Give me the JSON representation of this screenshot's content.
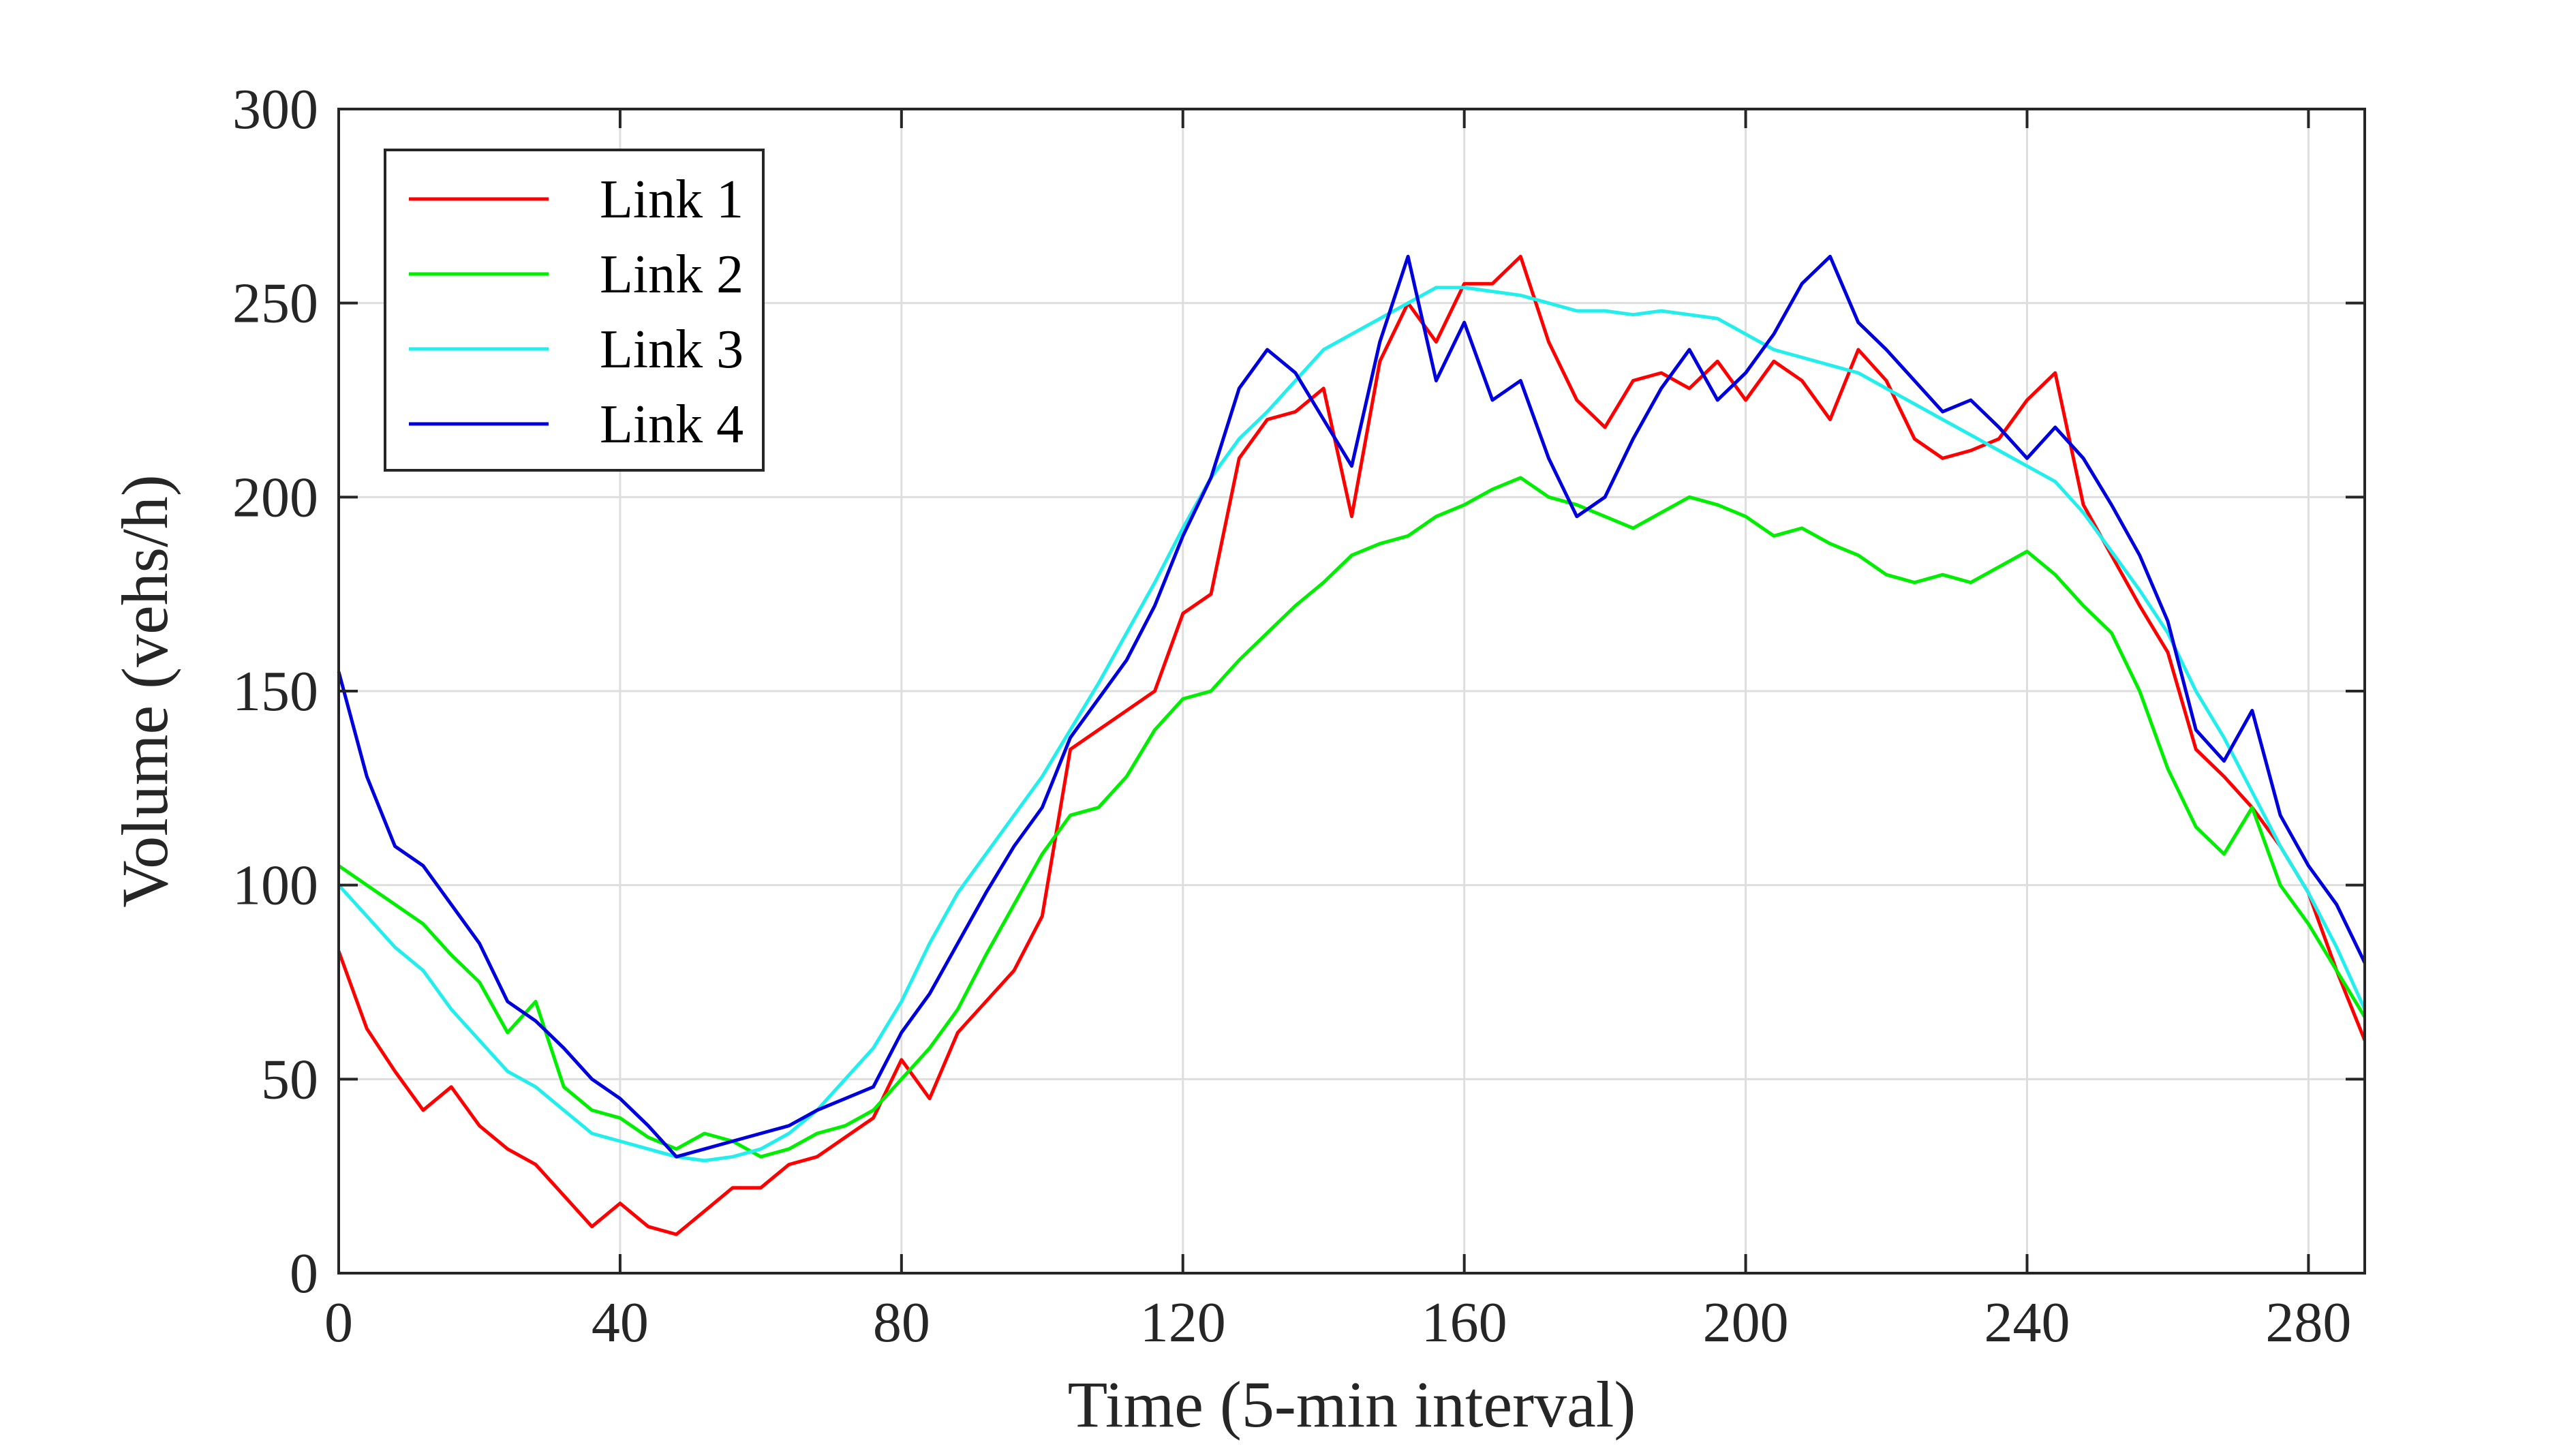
{
  "chart_data": {
    "type": "line",
    "title": "",
    "xlabel": "Time (5-min interval)",
    "ylabel": "Volume (vehs/h)",
    "xlim": [
      0,
      288
    ],
    "ylim": [
      0,
      300
    ],
    "xticks": [
      0,
      40,
      80,
      120,
      160,
      200,
      240,
      280
    ],
    "yticks": [
      0,
      50,
      100,
      150,
      200,
      250,
      300
    ],
    "grid": true,
    "legend_position": "top-left",
    "series": [
      {
        "name": "Link 1",
        "color": "#ff0000",
        "x": [
          0,
          4,
          8,
          12,
          16,
          20,
          24,
          28,
          32,
          36,
          40,
          44,
          48,
          52,
          56,
          60,
          64,
          68,
          72,
          76,
          80,
          84,
          88,
          92,
          96,
          100,
          104,
          108,
          112,
          116,
          120,
          124,
          128,
          132,
          136,
          140,
          144,
          148,
          152,
          156,
          160,
          164,
          168,
          172,
          176,
          180,
          184,
          188,
          192,
          196,
          200,
          204,
          208,
          212,
          216,
          220,
          224,
          228,
          232,
          236,
          240,
          244,
          248,
          252,
          256,
          260,
          264,
          268,
          272,
          276,
          280,
          284,
          288
        ],
        "values": [
          83,
          63,
          52,
          42,
          48,
          38,
          32,
          28,
          20,
          12,
          18,
          12,
          10,
          16,
          22,
          22,
          28,
          30,
          35,
          40,
          55,
          45,
          62,
          70,
          78,
          92,
          135,
          140,
          145,
          150,
          170,
          175,
          210,
          220,
          222,
          228,
          195,
          235,
          250,
          240,
          255,
          255,
          262,
          240,
          225,
          218,
          230,
          232,
          228,
          235,
          225,
          235,
          230,
          220,
          238,
          230,
          215,
          210,
          212,
          215,
          225,
          232,
          198,
          185,
          172,
          160,
          135,
          128,
          120,
          110,
          98,
          78,
          60
        ]
      },
      {
        "name": "Link 2",
        "color": "#00ee00",
        "x": [
          0,
          4,
          8,
          12,
          16,
          20,
          24,
          28,
          32,
          36,
          40,
          44,
          48,
          52,
          56,
          60,
          64,
          68,
          72,
          76,
          80,
          84,
          88,
          92,
          96,
          100,
          104,
          108,
          112,
          116,
          120,
          124,
          128,
          132,
          136,
          140,
          144,
          148,
          152,
          156,
          160,
          164,
          168,
          172,
          176,
          180,
          184,
          188,
          192,
          196,
          200,
          204,
          208,
          212,
          216,
          220,
          224,
          228,
          232,
          236,
          240,
          244,
          248,
          252,
          256,
          260,
          264,
          268,
          272,
          276,
          280,
          284,
          288
        ],
        "values": [
          105,
          100,
          95,
          90,
          82,
          75,
          62,
          70,
          48,
          42,
          40,
          35,
          32,
          36,
          34,
          30,
          32,
          36,
          38,
          42,
          50,
          58,
          68,
          82,
          95,
          108,
          118,
          120,
          128,
          140,
          148,
          150,
          158,
          165,
          172,
          178,
          185,
          188,
          190,
          195,
          198,
          202,
          205,
          200,
          198,
          195,
          192,
          196,
          200,
          198,
          195,
          190,
          192,
          188,
          185,
          180,
          178,
          180,
          178,
          182,
          186,
          180,
          172,
          165,
          150,
          130,
          115,
          108,
          120,
          100,
          90,
          78,
          66
        ]
      },
      {
        "name": "Link 3",
        "color": "#22eeee",
        "x": [
          0,
          4,
          8,
          12,
          16,
          20,
          24,
          28,
          32,
          36,
          40,
          44,
          48,
          52,
          56,
          60,
          64,
          68,
          72,
          76,
          80,
          84,
          88,
          92,
          96,
          100,
          104,
          108,
          112,
          116,
          120,
          124,
          128,
          132,
          136,
          140,
          144,
          148,
          152,
          156,
          160,
          164,
          168,
          172,
          176,
          180,
          184,
          188,
          192,
          196,
          200,
          204,
          208,
          212,
          216,
          220,
          224,
          228,
          232,
          236,
          240,
          244,
          248,
          252,
          256,
          260,
          264,
          268,
          272,
          276,
          280,
          284,
          288
        ],
        "values": [
          100,
          92,
          84,
          78,
          68,
          60,
          52,
          48,
          42,
          36,
          34,
          32,
          30,
          29,
          30,
          32,
          36,
          42,
          50,
          58,
          70,
          85,
          98,
          108,
          118,
          128,
          140,
          152,
          165,
          178,
          192,
          205,
          215,
          222,
          230,
          238,
          242,
          246,
          250,
          254,
          254,
          253,
          252,
          250,
          248,
          248,
          247,
          248,
          247,
          246,
          242,
          238,
          236,
          234,
          232,
          228,
          224,
          220,
          216,
          212,
          208,
          204,
          196,
          186,
          176,
          165,
          150,
          138,
          124,
          110,
          98,
          84,
          68
        ]
      },
      {
        "name": "Link 4",
        "color": "#0000dd",
        "x": [
          0,
          4,
          8,
          12,
          16,
          20,
          24,
          28,
          32,
          36,
          40,
          44,
          48,
          52,
          56,
          60,
          64,
          68,
          72,
          76,
          80,
          84,
          88,
          92,
          96,
          100,
          104,
          108,
          112,
          116,
          120,
          124,
          128,
          132,
          136,
          140,
          144,
          148,
          152,
          156,
          160,
          164,
          168,
          172,
          176,
          180,
          184,
          188,
          192,
          196,
          200,
          204,
          208,
          212,
          216,
          220,
          224,
          228,
          232,
          236,
          240,
          244,
          248,
          252,
          256,
          260,
          264,
          268,
          272,
          276,
          280,
          284,
          288
        ],
        "values": [
          155,
          128,
          110,
          105,
          95,
          85,
          70,
          65,
          58,
          50,
          45,
          38,
          30,
          32,
          34,
          36,
          38,
          42,
          45,
          48,
          62,
          72,
          85,
          98,
          110,
          120,
          138,
          148,
          158,
          172,
          190,
          205,
          228,
          238,
          232,
          220,
          208,
          240,
          262,
          230,
          245,
          225,
          230,
          210,
          195,
          200,
          215,
          228,
          238,
          225,
          232,
          242,
          255,
          262,
          245,
          238,
          230,
          222,
          225,
          218,
          210,
          218,
          210,
          198,
          185,
          168,
          140,
          132,
          145,
          118,
          105,
          95,
          80
        ]
      }
    ]
  }
}
